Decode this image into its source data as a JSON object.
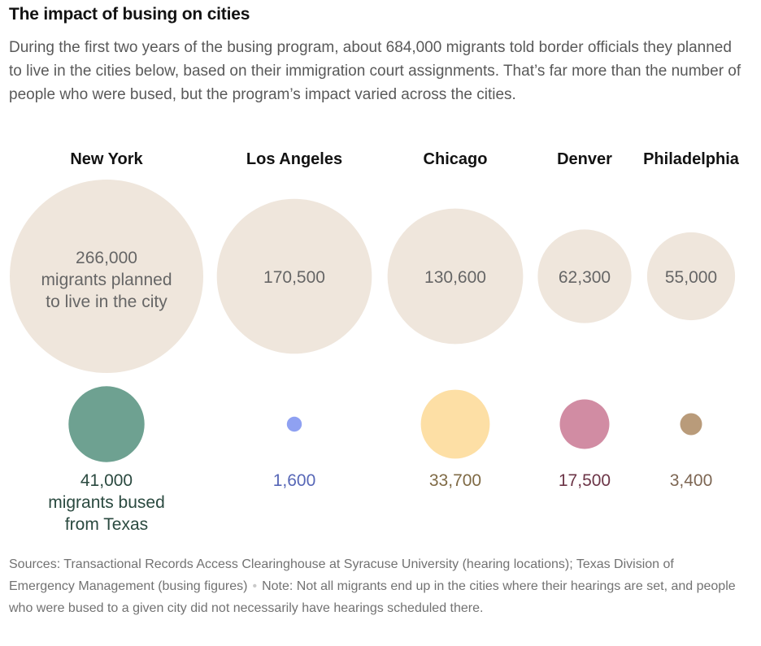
{
  "header": {
    "title": "The impact of busing on cities",
    "subtitle": "During the first two years of the busing program, about 684,000 migrants told border officials they planned to live in the cities below, based on their immigration court assignments. That’s far more than the number of people who were bused, but the program’s impact varied across the cities."
  },
  "chart_data": {
    "type": "proportional-circles",
    "title": "The impact of busing on cities",
    "cities": [
      "New York",
      "Los Angeles",
      "Chicago",
      "Denver",
      "Philadelphia"
    ],
    "series": [
      {
        "name": "Migrants planned to live in the city",
        "values": [
          266000,
          170500,
          130600,
          62300,
          55000
        ],
        "labels": [
          "266,000",
          "170,500",
          "130,600",
          "62,300",
          "55,000"
        ],
        "first_label_suffix": [
          "migrants planned",
          "to live in the city"
        ],
        "color": "#efe6dc"
      },
      {
        "name": "Migrants bused from Texas",
        "values": [
          41000,
          1600,
          33700,
          17500,
          3400
        ],
        "labels": [
          "41,000",
          "1,600",
          "33,700",
          "17,500",
          "3,400"
        ],
        "first_label_suffix": [
          "migrants bused",
          "from Texas"
        ],
        "colors": [
          "#6ea191",
          "#8fa1f2",
          "#fddfa5",
          "#d18ca3",
          "#b99b7a"
        ],
        "label_colors": [
          "#2b4a40",
          "#5767b7",
          "#7f6a45",
          "#6c3547",
          "#7d6653"
        ]
      }
    ]
  },
  "footer": {
    "sources": "Sources: Transactional Records Access Clearinghouse at Syracuse University (hearing locations); Texas Division of Emergency Management (busing figures)",
    "separator": "•",
    "note": "Note: Not all migrants end up in the cities where their hearings are set, and people who were bused to a given city did not necessarily have hearings scheduled there."
  }
}
